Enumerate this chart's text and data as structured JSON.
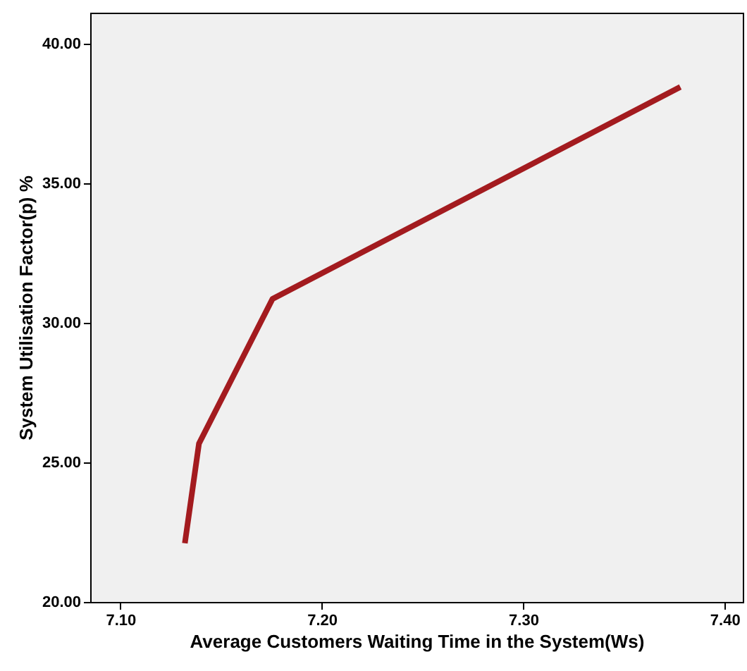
{
  "chart_data": {
    "type": "line",
    "xlabel": "Average Customers Waiting Time in the System(Ws)",
    "ylabel": "System Utilisation Factor(p) %",
    "x": [
      7.132,
      7.139,
      7.1755,
      7.378
    ],
    "series": [
      {
        "color": "#a31b1f",
        "values": [
          22.1,
          25.67,
          30.85,
          38.44
        ]
      }
    ],
    "xlim": [
      7.085,
      7.409
    ],
    "ylim": [
      20,
      41.1
    ],
    "xticks": [
      {
        "value": 7.1,
        "label": "7.10"
      },
      {
        "value": 7.2,
        "label": "7.20"
      },
      {
        "value": 7.3,
        "label": "7.30"
      },
      {
        "value": 7.4,
        "label": "7.40"
      }
    ],
    "yticks": [
      {
        "value": 20,
        "label": "20.00"
      },
      {
        "value": 25,
        "label": "25.00"
      },
      {
        "value": 30,
        "label": "30.00"
      },
      {
        "value": 35,
        "label": "35.00"
      },
      {
        "value": 40,
        "label": "40.00"
      }
    ],
    "grid": false
  }
}
